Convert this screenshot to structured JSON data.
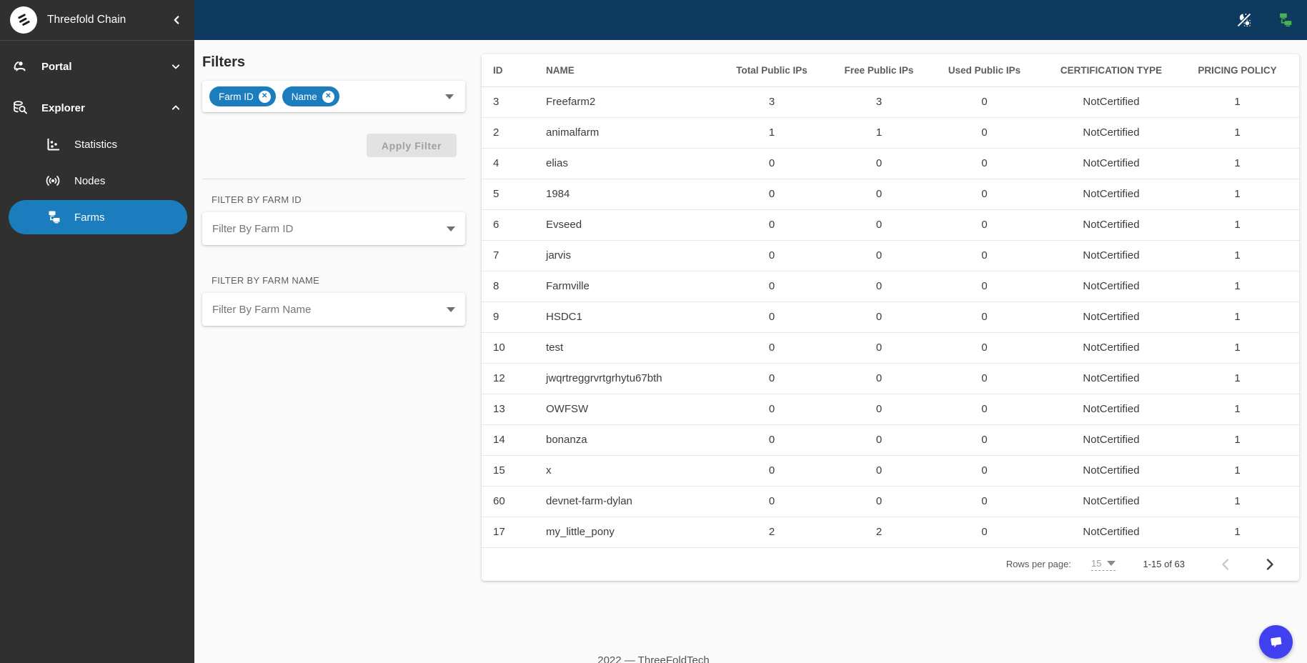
{
  "colors": {
    "topbar": "#0f3a5f",
    "sidebar": "#303030",
    "accent_blue": "#1b7dbe",
    "fab_indigo": "#4040f0",
    "lan_icon_green": "#4caf50"
  },
  "app": {
    "title": "Threefold Chain"
  },
  "sidebar": {
    "items": [
      {
        "label": "Portal"
      },
      {
        "label": "Explorer"
      },
      {
        "label": "Statistics"
      },
      {
        "label": "Nodes"
      },
      {
        "label": "Farms"
      }
    ]
  },
  "filters": {
    "title": "Filters",
    "chips": [
      "Farm ID",
      "Name"
    ],
    "apply_label": "Apply Filter",
    "farm_id": {
      "label": "FILTER BY FARM ID",
      "placeholder": "Filter By Farm ID"
    },
    "farm_name": {
      "label": "FILTER BY FARM NAME",
      "placeholder": "Filter By Farm Name"
    }
  },
  "table": {
    "columns": [
      "ID",
      "NAME",
      "Total Public IPs",
      "Free Public IPs",
      "Used Public IPs",
      "CERTIFICATION TYPE",
      "PRICING POLICY"
    ],
    "rows": [
      [
        "3",
        "Freefarm2",
        "3",
        "3",
        "0",
        "NotCertified",
        "1"
      ],
      [
        "2",
        "animalfarm",
        "1",
        "1",
        "0",
        "NotCertified",
        "1"
      ],
      [
        "4",
        "elias",
        "0",
        "0",
        "0",
        "NotCertified",
        "1"
      ],
      [
        "5",
        "1984",
        "0",
        "0",
        "0",
        "NotCertified",
        "1"
      ],
      [
        "6",
        "Evseed",
        "0",
        "0",
        "0",
        "NotCertified",
        "1"
      ],
      [
        "7",
        "jarvis",
        "0",
        "0",
        "0",
        "NotCertified",
        "1"
      ],
      [
        "8",
        "Farmville",
        "0",
        "0",
        "0",
        "NotCertified",
        "1"
      ],
      [
        "9",
        "HSDC1",
        "0",
        "0",
        "0",
        "NotCertified",
        "1"
      ],
      [
        "10",
        "test",
        "0",
        "0",
        "0",
        "NotCertified",
        "1"
      ],
      [
        "12",
        "jwqrtreggrvrtgrhytu67bth",
        "0",
        "0",
        "0",
        "NotCertified",
        "1"
      ],
      [
        "13",
        "OWFSW",
        "0",
        "0",
        "0",
        "NotCertified",
        "1"
      ],
      [
        "14",
        "bonanza",
        "0",
        "0",
        "0",
        "NotCertified",
        "1"
      ],
      [
        "15",
        "x",
        "0",
        "0",
        "0",
        "NotCertified",
        "1"
      ],
      [
        "60",
        "devnet-farm-dylan",
        "0",
        "0",
        "0",
        "NotCertified",
        "1"
      ],
      [
        "17",
        "my_little_pony",
        "2",
        "2",
        "0",
        "NotCertified",
        "1"
      ]
    ],
    "pagination": {
      "rows_per_page_label": "Rows per page:",
      "rows_per_page": "15",
      "range": "1-15 of 63"
    }
  },
  "footer": {
    "text": "2022 — ThreeFoldTech"
  }
}
